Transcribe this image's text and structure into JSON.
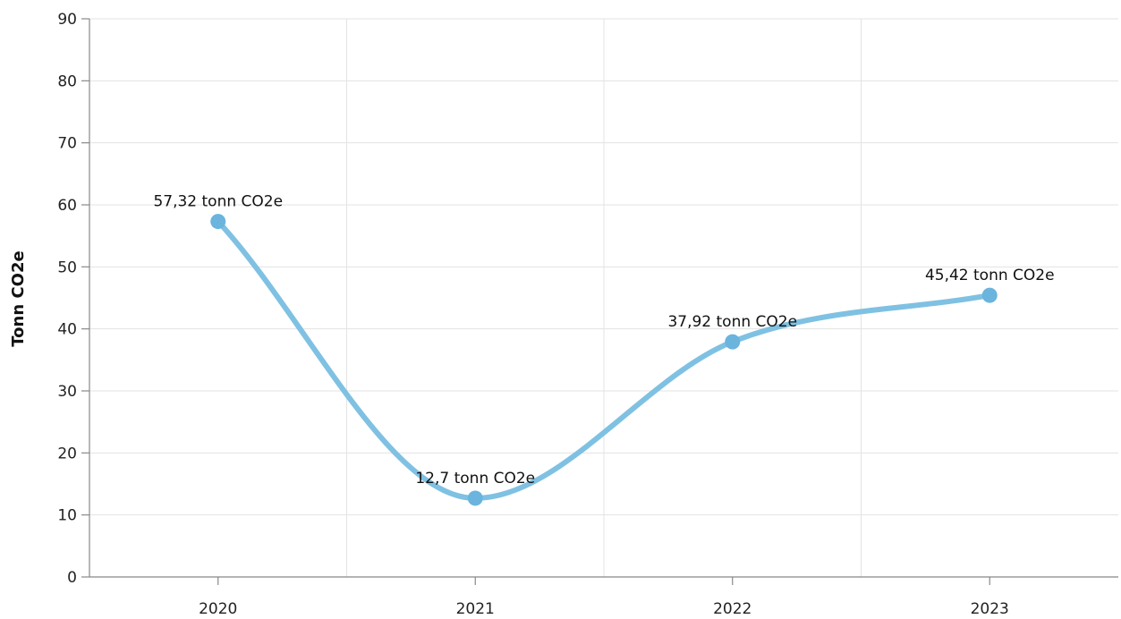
{
  "chart_data": {
    "type": "line",
    "smooth": true,
    "title": "",
    "xlabel": "",
    "ylabel": "Tonn CO2e",
    "ylim": [
      0,
      90
    ],
    "y_ticks": [
      0,
      10,
      20,
      30,
      40,
      50,
      60,
      70,
      80,
      90
    ],
    "categories": [
      "2020",
      "2021",
      "2022",
      "2023"
    ],
    "grid": true,
    "legend": "none",
    "series": [
      {
        "color": "#7fc1e2",
        "marker_color": "#6ab4de",
        "values": [
          57.32,
          12.7,
          37.92,
          45.42
        ],
        "labels": [
          "57,32 tonn CO2e",
          "12,7 tonn CO2e",
          "37,92 tonn CO2e",
          "45,42 tonn CO2e"
        ]
      }
    ]
  }
}
